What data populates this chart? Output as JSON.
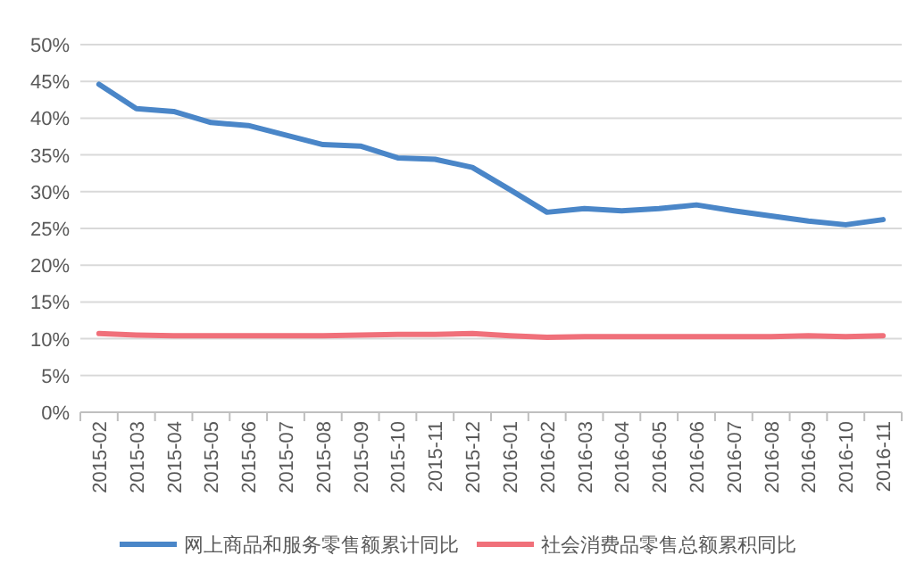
{
  "chart_data": {
    "type": "line",
    "categories": [
      "2015-02",
      "2015-03",
      "2015-04",
      "2015-05",
      "2015-06",
      "2015-07",
      "2015-08",
      "2015-09",
      "2015-10",
      "2015-11",
      "2015-12",
      "2016-01",
      "2016-02",
      "2016-03",
      "2016-04",
      "2016-05",
      "2016-06",
      "2016-07",
      "2016-08",
      "2016-09",
      "2016-10",
      "2016-11"
    ],
    "series": [
      {
        "name": "网上商品和服务零售额累计同比",
        "color": "#4a86c8",
        "values": [
          44.6,
          41.3,
          40.9,
          39.4,
          39.0,
          37.7,
          36.4,
          36.2,
          34.6,
          34.4,
          33.3,
          30.3,
          27.2,
          27.7,
          27.4,
          27.7,
          28.2,
          27.4,
          26.7,
          26.0,
          25.5,
          26.2
        ]
      },
      {
        "name": "社会消费品零售总额累积同比",
        "color": "#f0707a",
        "values": [
          10.7,
          10.5,
          10.4,
          10.4,
          10.4,
          10.4,
          10.4,
          10.5,
          10.6,
          10.6,
          10.7,
          10.4,
          10.2,
          10.3,
          10.3,
          10.3,
          10.3,
          10.3,
          10.3,
          10.4,
          10.3,
          10.4
        ]
      }
    ],
    "ylim": [
      0,
      50
    ],
    "yticks": [
      {
        "value": 0,
        "label": "0%"
      },
      {
        "value": 5,
        "label": "5%"
      },
      {
        "value": 10,
        "label": "10%"
      },
      {
        "value": 15,
        "label": "15%"
      },
      {
        "value": 20,
        "label": "20%"
      },
      {
        "value": 25,
        "label": "25%"
      },
      {
        "value": 30,
        "label": "30%"
      },
      {
        "value": 35,
        "label": "35%"
      },
      {
        "value": 40,
        "label": "40%"
      },
      {
        "value": 45,
        "label": "45%"
      },
      {
        "value": 50,
        "label": "50%"
      }
    ],
    "grid": "y",
    "legend": "bottom",
    "marker": "none",
    "line_style": "solid"
  }
}
